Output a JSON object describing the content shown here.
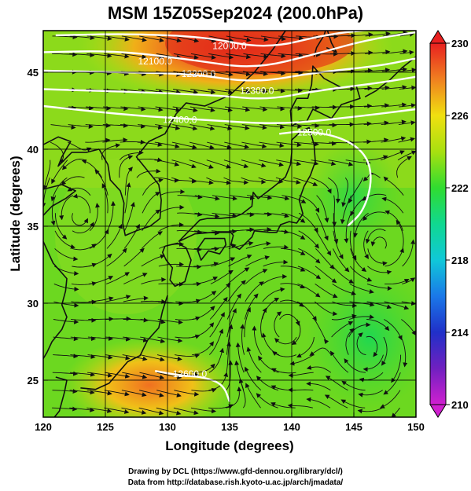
{
  "title": "MSM 15Z05Sep2024 (200.0hPa)",
  "chart_data": {
    "type": "heatmap",
    "title": "MSM 15Z05Sep2024 (200.0hPa)",
    "xlabel": "Longitude (degrees)",
    "ylabel": "Latitude  (degrees)",
    "xlim": [
      120,
      150
    ],
    "ylim": [
      22.6,
      47.7
    ],
    "x_ticks": [
      120,
      125,
      130,
      135,
      140,
      145,
      150
    ],
    "x_tick_labels": [
      "120",
      "125",
      "130",
      "135",
      "140",
      "145",
      "150"
    ],
    "y_ticks": [
      25,
      30,
      35,
      40,
      45
    ],
    "y_tick_labels": [
      "25",
      "30",
      "35",
      "40",
      "45"
    ],
    "grid": true,
    "colorbar": {
      "min": 210,
      "max": 230,
      "ticks": [
        210,
        214,
        218,
        222,
        226,
        230
      ],
      "tick_labels": [
        "210",
        "214",
        "218",
        "222",
        "226",
        "230"
      ]
    },
    "contours": [
      {
        "value": 12000,
        "label": "12000.0",
        "points": [
          [
            121,
            47.4
          ],
          [
            127,
            47.5
          ],
          [
            133,
            47.3
          ],
          [
            138,
            46.5
          ],
          [
            143,
            47.5
          ],
          [
            147,
            47.8
          ]
        ],
        "label_at": [
          135,
          46.7
        ]
      },
      {
        "value": 12100,
        "label": "12100.0",
        "points": [
          [
            120,
            46.3
          ],
          [
            126,
            46.4
          ],
          [
            132,
            45.8
          ],
          [
            137,
            45.2
          ],
          [
            142,
            46.2
          ],
          [
            146,
            47.1
          ],
          [
            150,
            47.6
          ]
        ],
        "label_at": [
          129,
          45.7
        ]
      },
      {
        "value": 12200,
        "label": "12200.0",
        "points": [
          [
            120,
            45.1
          ],
          [
            126,
            45.0
          ],
          [
            132,
            44.9
          ],
          [
            137,
            44.3
          ],
          [
            142,
            45.0
          ],
          [
            147,
            45.4
          ],
          [
            150,
            45.9
          ]
        ],
        "label_at": [
          132.5,
          44.9
        ]
      },
      {
        "value": 12300,
        "label": "12300.0",
        "points": [
          [
            120,
            43.9
          ],
          [
            128,
            43.7
          ],
          [
            134,
            43.5
          ],
          [
            138,
            43.2
          ],
          [
            142,
            43.8
          ],
          [
            147,
            44.3
          ],
          [
            150,
            44.7
          ]
        ],
        "label_at": [
          137.2,
          43.8
        ]
      },
      {
        "value": 12400,
        "label": "12400.0",
        "points": [
          [
            120,
            42.8
          ],
          [
            127,
            42.2
          ],
          [
            133,
            41.9
          ],
          [
            139,
            41.6
          ],
          [
            145,
            42.1
          ],
          [
            150,
            42.6
          ]
        ],
        "label_at": [
          131,
          41.9
        ]
      },
      {
        "value": 12500,
        "label": "12500.0",
        "points": [
          [
            139,
            41.0
          ],
          [
            141,
            41.2
          ],
          [
            144,
            40.8
          ],
          [
            146,
            39.7
          ],
          [
            146.5,
            38
          ],
          [
            145.8,
            36
          ],
          [
            144.5,
            35
          ]
        ],
        "label_at": [
          141.8,
          41.1
        ]
      },
      {
        "value": 12600,
        "label": "12600.0",
        "points": [
          [
            129,
            25.6
          ],
          [
            131,
            25.3
          ],
          [
            133,
            25.2
          ],
          [
            134.5,
            24.7
          ],
          [
            135,
            23.6
          ]
        ],
        "label_at": [
          131.8,
          25.4
        ]
      }
    ],
    "vortices": [
      {
        "name": "cyclonic",
        "center": [
          122.8,
          35.6
        ]
      },
      {
        "name": "anticyclonic",
        "center": [
          139.5,
          28.6
        ]
      },
      {
        "name": "anticyclonic",
        "center": [
          146.2,
          27.5
        ]
      },
      {
        "name": "cyclonic",
        "center": [
          147.2,
          33.5
        ]
      }
    ],
    "high_temperature_regions": [
      {
        "name": "north-warm-core",
        "center": [
          134,
          46.8
        ],
        "value": 229
      },
      {
        "name": "south-warm-core",
        "center": [
          130,
          25.0
        ],
        "value": 227
      }
    ]
  },
  "credits": {
    "line1": "Drawing by DCL (https://www.gfd-dennou.org/library/dcl/)",
    "line2": "Data from http://database.rish.kyoto-u.ac.jp/arch/jmadata/"
  }
}
